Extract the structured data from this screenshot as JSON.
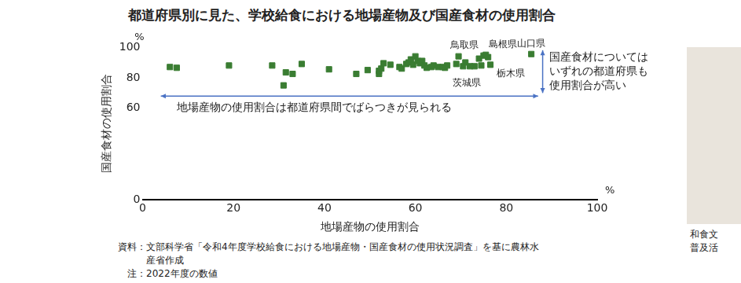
{
  "chart_data": {
    "type": "scatter",
    "title": "都道府県別に見た、学校給食における地場産物及び国産食材の使用割合",
    "x_label": "地場産物の使用割合",
    "y_label": "国産食材の使用割合",
    "x_unit": "%",
    "y_unit": "%",
    "x": [
      6,
      7.5,
      19,
      28.5,
      31,
      31.5,
      33,
      35,
      41,
      47,
      49.5,
      52,
      52,
      52.5,
      53,
      54.5,
      56.5,
      57,
      58,
      58.5,
      59,
      59.5,
      60,
      60.5,
      61,
      61.5,
      62,
      62.5,
      63.5,
      64,
      65,
      66,
      66.5,
      67,
      69,
      69.5,
      70.5,
      71,
      73,
      74,
      74.5,
      76,
      75,
      75.5,
      85.5,
      76.5,
      72
    ],
    "values": [
      87,
      86.5,
      88,
      88,
      75,
      83.5,
      82.5,
      89,
      85.5,
      82.5,
      85,
      82.5,
      84.5,
      86,
      89.5,
      88.5,
      87,
      86,
      89,
      90,
      92,
      88.5,
      94,
      91,
      89.5,
      91,
      88,
      86.5,
      87,
      88,
      87,
      87,
      86.5,
      88,
      89,
      94,
      87.5,
      90,
      87.5,
      92.5,
      88,
      93.5,
      94.5,
      95,
      95.5,
      88.5,
      87.5
    ],
    "point_labels": [
      null,
      null,
      null,
      null,
      null,
      null,
      null,
      null,
      null,
      null,
      null,
      null,
      null,
      null,
      null,
      null,
      null,
      null,
      null,
      null,
      null,
      null,
      null,
      null,
      null,
      null,
      null,
      null,
      null,
      null,
      null,
      null,
      null,
      null,
      null,
      null,
      null,
      null,
      null,
      null,
      null,
      null,
      "鳥取県",
      "島根県",
      "山口県",
      "栃木県",
      "茨城県"
    ],
    "color": "#3a7d32",
    "marker": "square",
    "xlim": [
      0,
      100
    ],
    "xticks": [
      0,
      20,
      40,
      60,
      80,
      100
    ],
    "ylim": [
      0,
      100
    ],
    "yticks": [
      0,
      60,
      80,
      100
    ],
    "grid": false,
    "annotations": [
      {
        "text": "地場産物の使用割合は都道府県間でばらつきが見られる"
      },
      {
        "text": [
          "国産食材については",
          "いずれの都道府県も",
          "使用割合が高い"
        ]
      }
    ],
    "source": [
      "資料：文部科学省「令和4年度学校給食における地場産物・国産食材の使用状況調査」を基に農林水",
      "産省作成"
    ],
    "note": "注：2022年度の数値"
  },
  "side_caption": [
    "和食文",
    "普及活"
  ]
}
